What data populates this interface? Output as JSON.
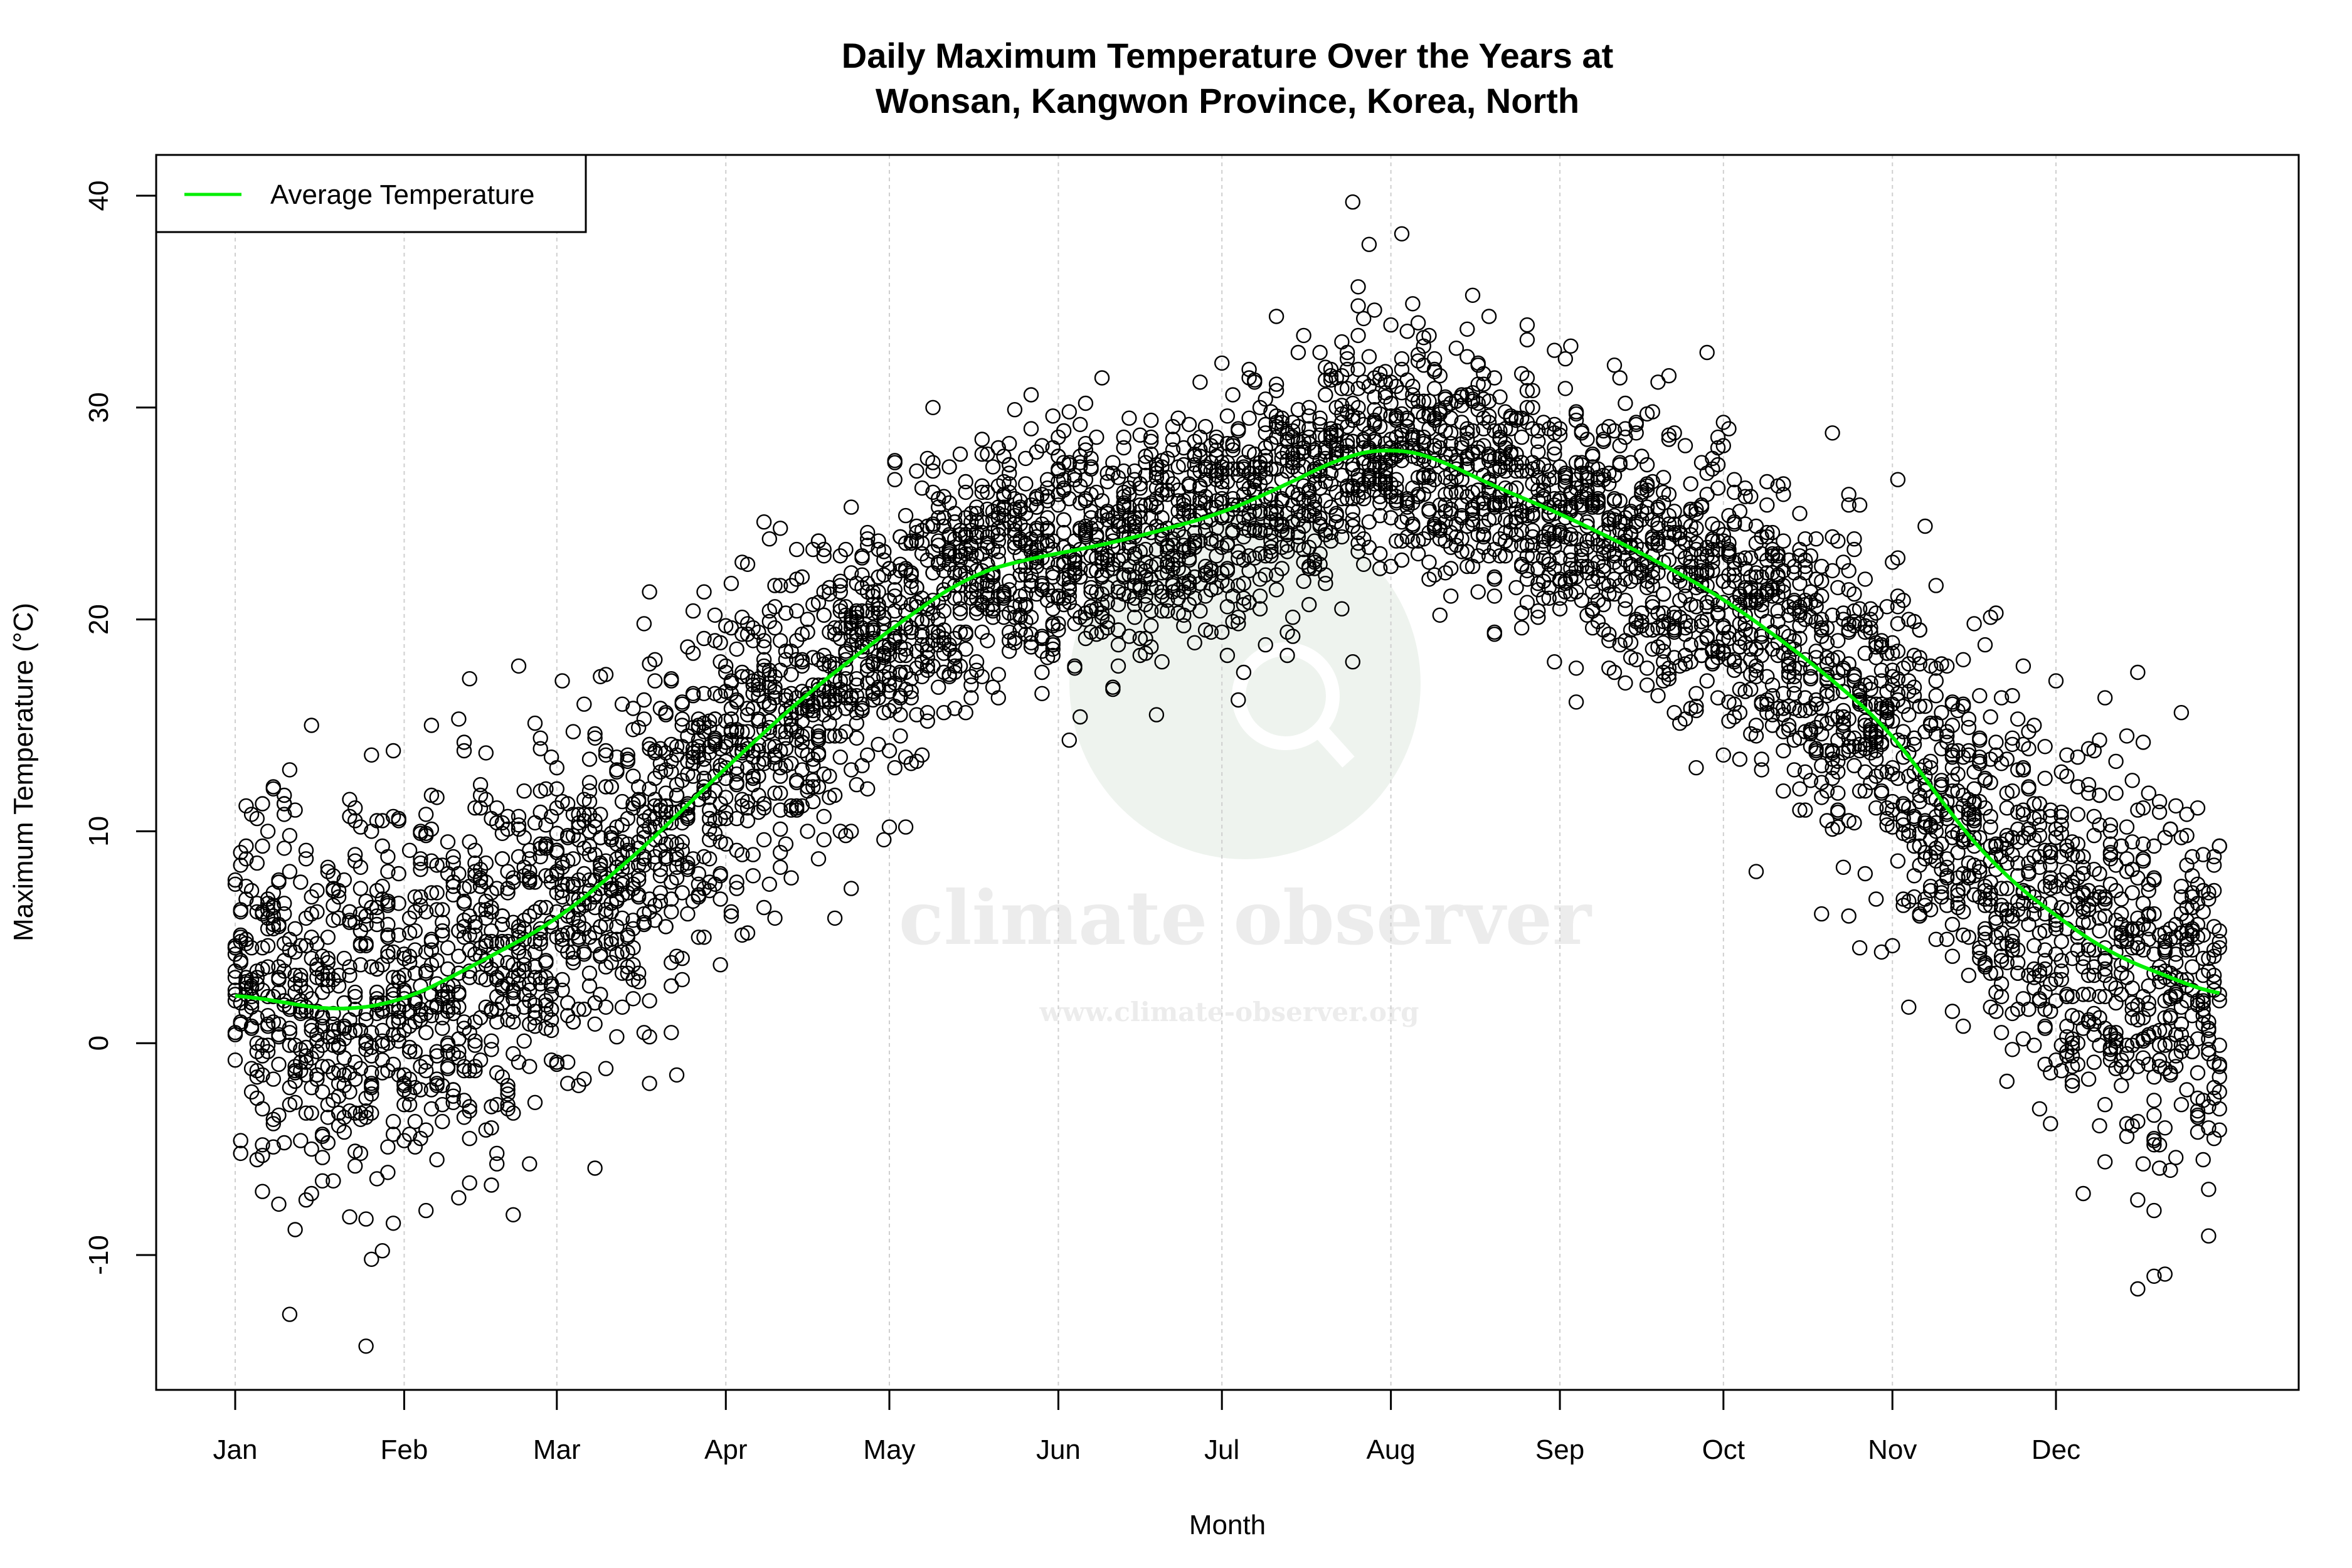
{
  "chart_data": {
    "type": "scatter",
    "title": "Daily Maximum Temperature Over the Years at\nWonsan, Kangwon Province, Korea, North",
    "title_lines": [
      "Daily Maximum Temperature Over the Years at",
      "Wonsan, Kangwon Province, Korea, North"
    ],
    "xlabel": "Month",
    "ylabel": "Maximum Temperature (°C)",
    "x_ticks": [
      {
        "label": "Jan",
        "day": 1
      },
      {
        "label": "Feb",
        "day": 32
      },
      {
        "label": "Mar",
        "day": 60
      },
      {
        "label": "Apr",
        "day": 91
      },
      {
        "label": "May",
        "day": 121
      },
      {
        "label": "Jun",
        "day": 152
      },
      {
        "label": "Jul",
        "day": 182
      },
      {
        "label": "Aug",
        "day": 213
      },
      {
        "label": "Sep",
        "day": 244
      },
      {
        "label": "Oct",
        "day": 274
      },
      {
        "label": "Nov",
        "day": 305
      },
      {
        "label": "Dec",
        "day": 335
      }
    ],
    "y_ticks": [
      -10,
      0,
      10,
      20,
      30,
      40
    ],
    "xlim": [
      1,
      366
    ],
    "ylim": [
      -16.4,
      41.9
    ],
    "grid": "vertical dotted at month ticks",
    "legend": {
      "position": "top-left",
      "entries": [
        {
          "label": "Average Temperature",
          "color": "#00ee00"
        }
      ]
    },
    "series": [
      {
        "name": "Average Temperature",
        "type": "line",
        "color": "#00ee00",
        "day": [
          1,
          20,
          32,
          45,
          60,
          75,
          91,
          105,
          121,
          135,
          145,
          152,
          165,
          182,
          195,
          205,
          213,
          220,
          230,
          244,
          260,
          274,
          290,
          305,
          315,
          325,
          335,
          345,
          355,
          365
        ],
        "values": [
          2.3,
          1.5,
          2.0,
          3.7,
          5.8,
          9.0,
          13.0,
          16.3,
          19.5,
          22.0,
          22.8,
          23.1,
          23.8,
          25.0,
          26.5,
          27.8,
          28.1,
          27.8,
          26.5,
          25.0,
          23.0,
          21.0,
          18.0,
          14.7,
          11.0,
          8.0,
          6.0,
          4.2,
          3.2,
          2.2
        ]
      },
      {
        "type": "scatter",
        "marker": "open-circle",
        "color": "#000000",
        "description_points_per_day": 14,
        "notable_points": [
          {
            "day": 206,
            "value": 39.7
          },
          {
            "day": 215,
            "value": 38.2
          },
          {
            "day": 25,
            "value": -14.3
          },
          {
            "day": 11,
            "value": -12.8
          },
          {
            "day": 353,
            "value": -11.0
          },
          {
            "day": 355,
            "value": -10.9
          }
        ]
      }
    ]
  },
  "watermark": {
    "name": "climate observer",
    "url": "www.climate-observer.org"
  }
}
